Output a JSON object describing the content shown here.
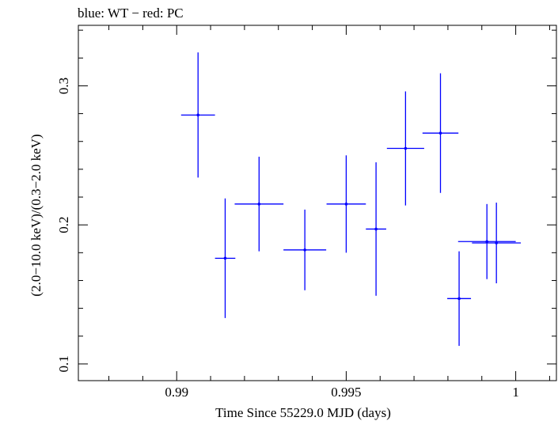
{
  "chart_data": {
    "type": "scatter",
    "title": "blue: WT − red: PC",
    "xlabel": "Time Since 55229.0 MJD (days)",
    "ylabel": "(2.0−10.0 keV)/(0.3−2.0 keV)",
    "xlim": [
      0.9871,
      1.0012
    ],
    "ylim": [
      0.088,
      0.3435
    ],
    "x_ticks": [
      0.99,
      0.995,
      1.0
    ],
    "x_tick_labels": [
      "0.99",
      "0.995",
      "1"
    ],
    "y_ticks": [
      0.1,
      0.2,
      0.3
    ],
    "y_tick_labels": [
      "0.1",
      "0.2",
      "0.3"
    ],
    "grid": false,
    "series": [
      {
        "name": "WT",
        "color": "#0000ff",
        "points": [
          {
            "x": 0.99833,
            "xerr": 0.00035,
            "y": 0.147,
            "yerr": 0.034
          },
          {
            "x": 0.99943,
            "xerr": 0.00072,
            "y": 0.187,
            "yerr": 0.029
          },
          {
            "x": 0.99063,
            "xerr": 0.0005,
            "y": 0.279,
            "yerr": 0.045
          },
          {
            "x": 0.99143,
            "xerr": 0.0003,
            "y": 0.176,
            "yerr": 0.043
          },
          {
            "x": 0.99243,
            "xerr": 0.00072,
            "y": 0.215,
            "yerr": 0.034
          },
          {
            "x": 0.99378,
            "xerr": 0.00063,
            "y": 0.182,
            "yerr": 0.029
          },
          {
            "x": 0.995,
            "xerr": 0.00058,
            "y": 0.215,
            "yerr": 0.035
          },
          {
            "x": 0.99588,
            "xerr": 0.0003,
            "y": 0.197,
            "yerr": 0.048
          },
          {
            "x": 0.99675,
            "xerr": 0.00055,
            "y": 0.255,
            "yerr": 0.041
          },
          {
            "x": 0.99778,
            "xerr": 0.00053,
            "y": 0.266,
            "yerr": 0.043
          },
          {
            "x": 0.99915,
            "xerr": 0.00085,
            "y": 0.188,
            "yerr": 0.027
          }
        ]
      }
    ]
  }
}
